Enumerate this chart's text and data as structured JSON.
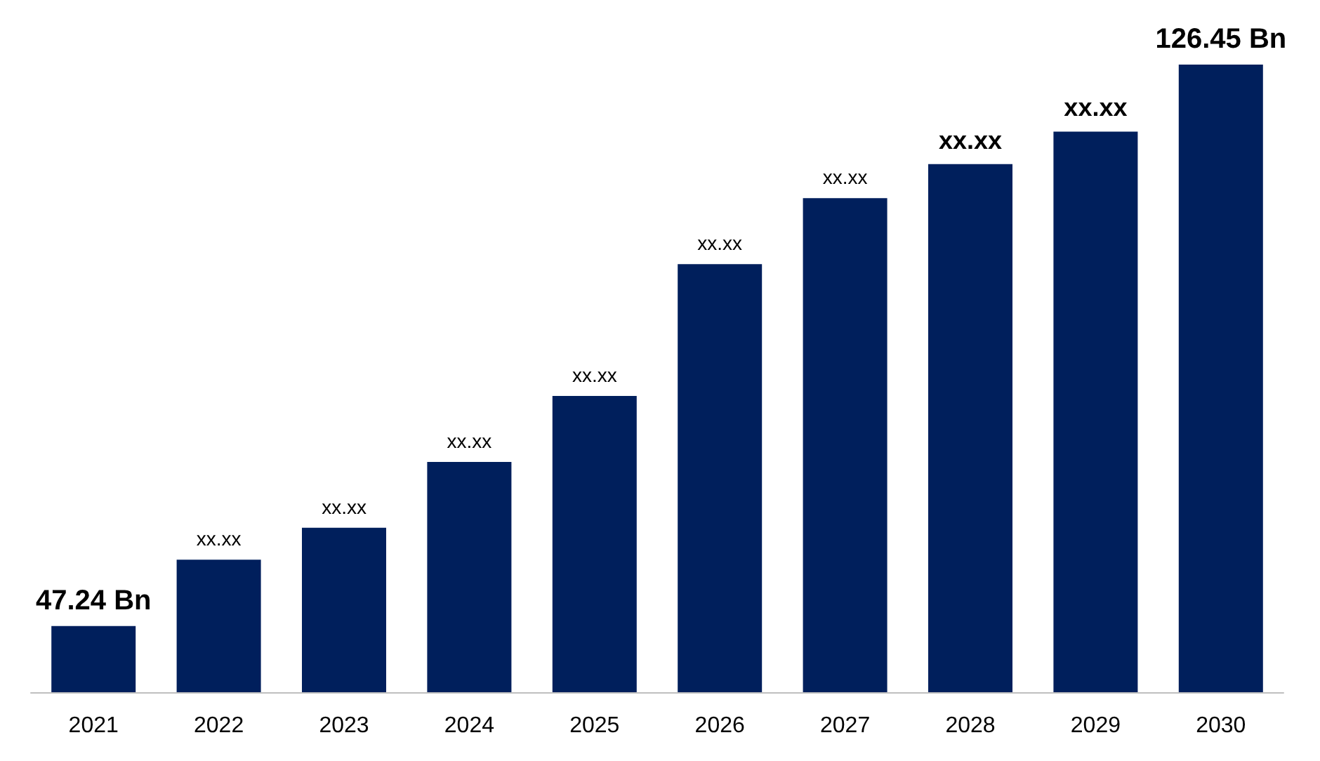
{
  "chart_data": {
    "type": "bar",
    "categories": [
      "2021",
      "2022",
      "2023",
      "2024",
      "2025",
      "2026",
      "2027",
      "2028",
      "2029",
      "2030"
    ],
    "values": [
      47.24,
      56.6,
      61.1,
      70.4,
      79.7,
      98.3,
      107.6,
      112.4,
      117,
      126.45
    ],
    "value_labels": [
      "47.24 Bn",
      "xx.xx",
      "xx.xx",
      "xx.xx",
      "xx.xx",
      "xx.xx",
      "xx.xx",
      "xx.xx",
      "xx.xx",
      "126.45 Bn"
    ],
    "ylim": [
      37.9,
      126.45
    ],
    "color": "#001f5c"
  }
}
